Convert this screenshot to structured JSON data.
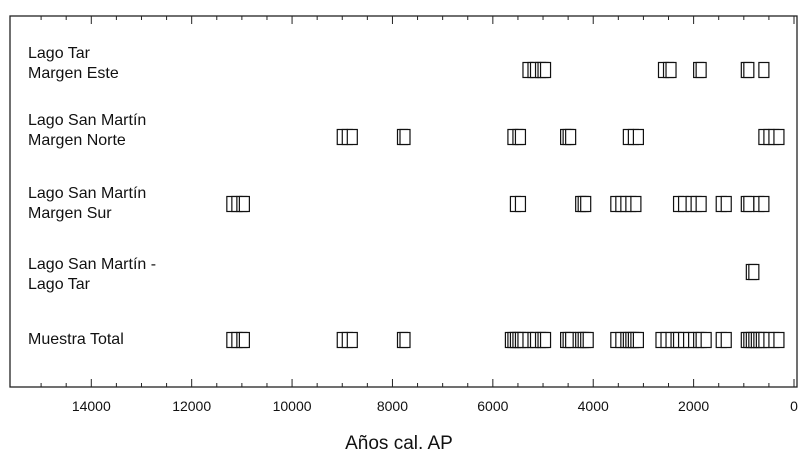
{
  "chart_data": {
    "type": "scatter",
    "xlabel": "Años cal. AP",
    "xlim": [
      15500,
      0
    ],
    "x_ticks": [
      14000,
      12000,
      10000,
      8000,
      6000,
      4000,
      2000,
      0
    ],
    "rows": [
      {
        "label_lines": [
          "Lago Tar",
          "Margen Este"
        ],
        "values": [
          5300,
          5200,
          5150,
          5050,
          5000,
          4950,
          2600,
          2500,
          2450,
          1900,
          1850,
          950,
          900,
          600
        ]
      },
      {
        "label_lines": [
          "Lago San Martín",
          "Margen Norte"
        ],
        "values": [
          9000,
          8900,
          8800,
          7800,
          7750,
          5600,
          5500,
          5450,
          4550,
          4500,
          4450,
          3300,
          3200,
          3100,
          600,
          500,
          400,
          300
        ]
      },
      {
        "label_lines": [
          "Lago San Martín",
          "Margen Sur"
        ],
        "values": [
          11200,
          11100,
          11000,
          10950,
          5550,
          5450,
          4250,
          4200,
          4150,
          3550,
          3450,
          3350,
          3250,
          3150,
          2300,
          2200,
          2050,
          1950,
          1850,
          1450,
          1350,
          950,
          900,
          700,
          600
        ]
      },
      {
        "label_lines": [
          "Lago San Martín -",
          "Lago Tar"
        ],
        "values": [
          850,
          800
        ]
      },
      {
        "label_lines": [
          "Muestra Total"
        ],
        "values": [
          11200,
          11100,
          11000,
          10950,
          9000,
          8900,
          8800,
          7800,
          7750,
          5650,
          5600,
          5550,
          5500,
          5450,
          5400,
          5300,
          5200,
          5150,
          5050,
          5000,
          4950,
          4550,
          4500,
          4450,
          4300,
          4250,
          4200,
          4150,
          4100,
          3550,
          3450,
          3350,
          3300,
          3250,
          3200,
          3150,
          3100,
          2650,
          2550,
          2450,
          2350,
          2300,
          2200,
          2100,
          2000,
          1900,
          1850,
          1750,
          1450,
          1350,
          950,
          900,
          850,
          800,
          750,
          700,
          650,
          600,
          500,
          400,
          300
        ]
      }
    ],
    "grid": false,
    "legend": "none"
  }
}
